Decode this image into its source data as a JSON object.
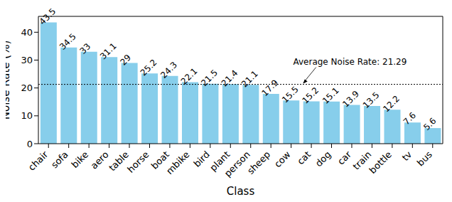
{
  "chart_data": {
    "type": "bar",
    "xlabel": "Class",
    "ylabel": "Noise Rate (%)",
    "categories": [
      "chair",
      "sofa",
      "bike",
      "aero",
      "table",
      "horse",
      "boat",
      "mbike",
      "bird",
      "plant",
      "person",
      "sheep",
      "cow",
      "cat",
      "dog",
      "car",
      "train",
      "bottle",
      "tv",
      "bus"
    ],
    "values": [
      43.5,
      34.5,
      33.0,
      31.1,
      29.0,
      25.2,
      24.3,
      22.1,
      21.5,
      21.4,
      21.1,
      17.9,
      15.5,
      15.2,
      15.1,
      13.9,
      13.5,
      12.2,
      7.6,
      5.6
    ],
    "color": "#87ceeb",
    "ylim": [
      0,
      45.7
    ],
    "yticks": [
      0,
      10,
      20,
      30,
      40
    ],
    "data_labels": true,
    "reference_line": {
      "value": 21.29,
      "label": "Average Noise Rate: 21.29"
    }
  }
}
